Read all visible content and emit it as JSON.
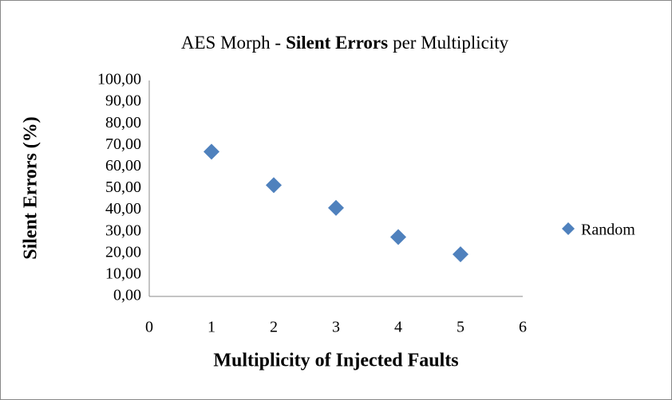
{
  "chart_data": {
    "type": "scatter",
    "title_parts": [
      "AES Morph -",
      "Silent Errors",
      "per Multiplicity"
    ],
    "x_label": "Multiplicity of Injected Faults",
    "y_label": "Silent Errors (%)",
    "series": [
      {
        "name": "Random",
        "color": "#4f81bd",
        "x": [
          1,
          2,
          3,
          4,
          5
        ],
        "values": [
          67,
          51.5,
          41,
          27.5,
          19.5
        ]
      }
    ],
    "xlim": [
      0,
      6
    ],
    "xticks": [
      0,
      1,
      2,
      3,
      4,
      5,
      6
    ],
    "ylim": [
      0,
      100
    ],
    "yticks": [
      {
        "value": 0,
        "label": "0,00"
      },
      {
        "value": 10,
        "label": "10,00"
      },
      {
        "value": 20,
        "label": "20,00"
      },
      {
        "value": 30,
        "label": "30,00"
      },
      {
        "value": 40,
        "label": "40,00"
      },
      {
        "value": 50,
        "label": "50,00"
      },
      {
        "value": 60,
        "label": "60,00"
      },
      {
        "value": 70,
        "label": "70,00"
      },
      {
        "value": 80,
        "label": "80,00"
      },
      {
        "value": 90,
        "label": "90,00"
      },
      {
        "value": 100,
        "label": "100,00"
      }
    ],
    "grid": false,
    "legend": "right"
  }
}
